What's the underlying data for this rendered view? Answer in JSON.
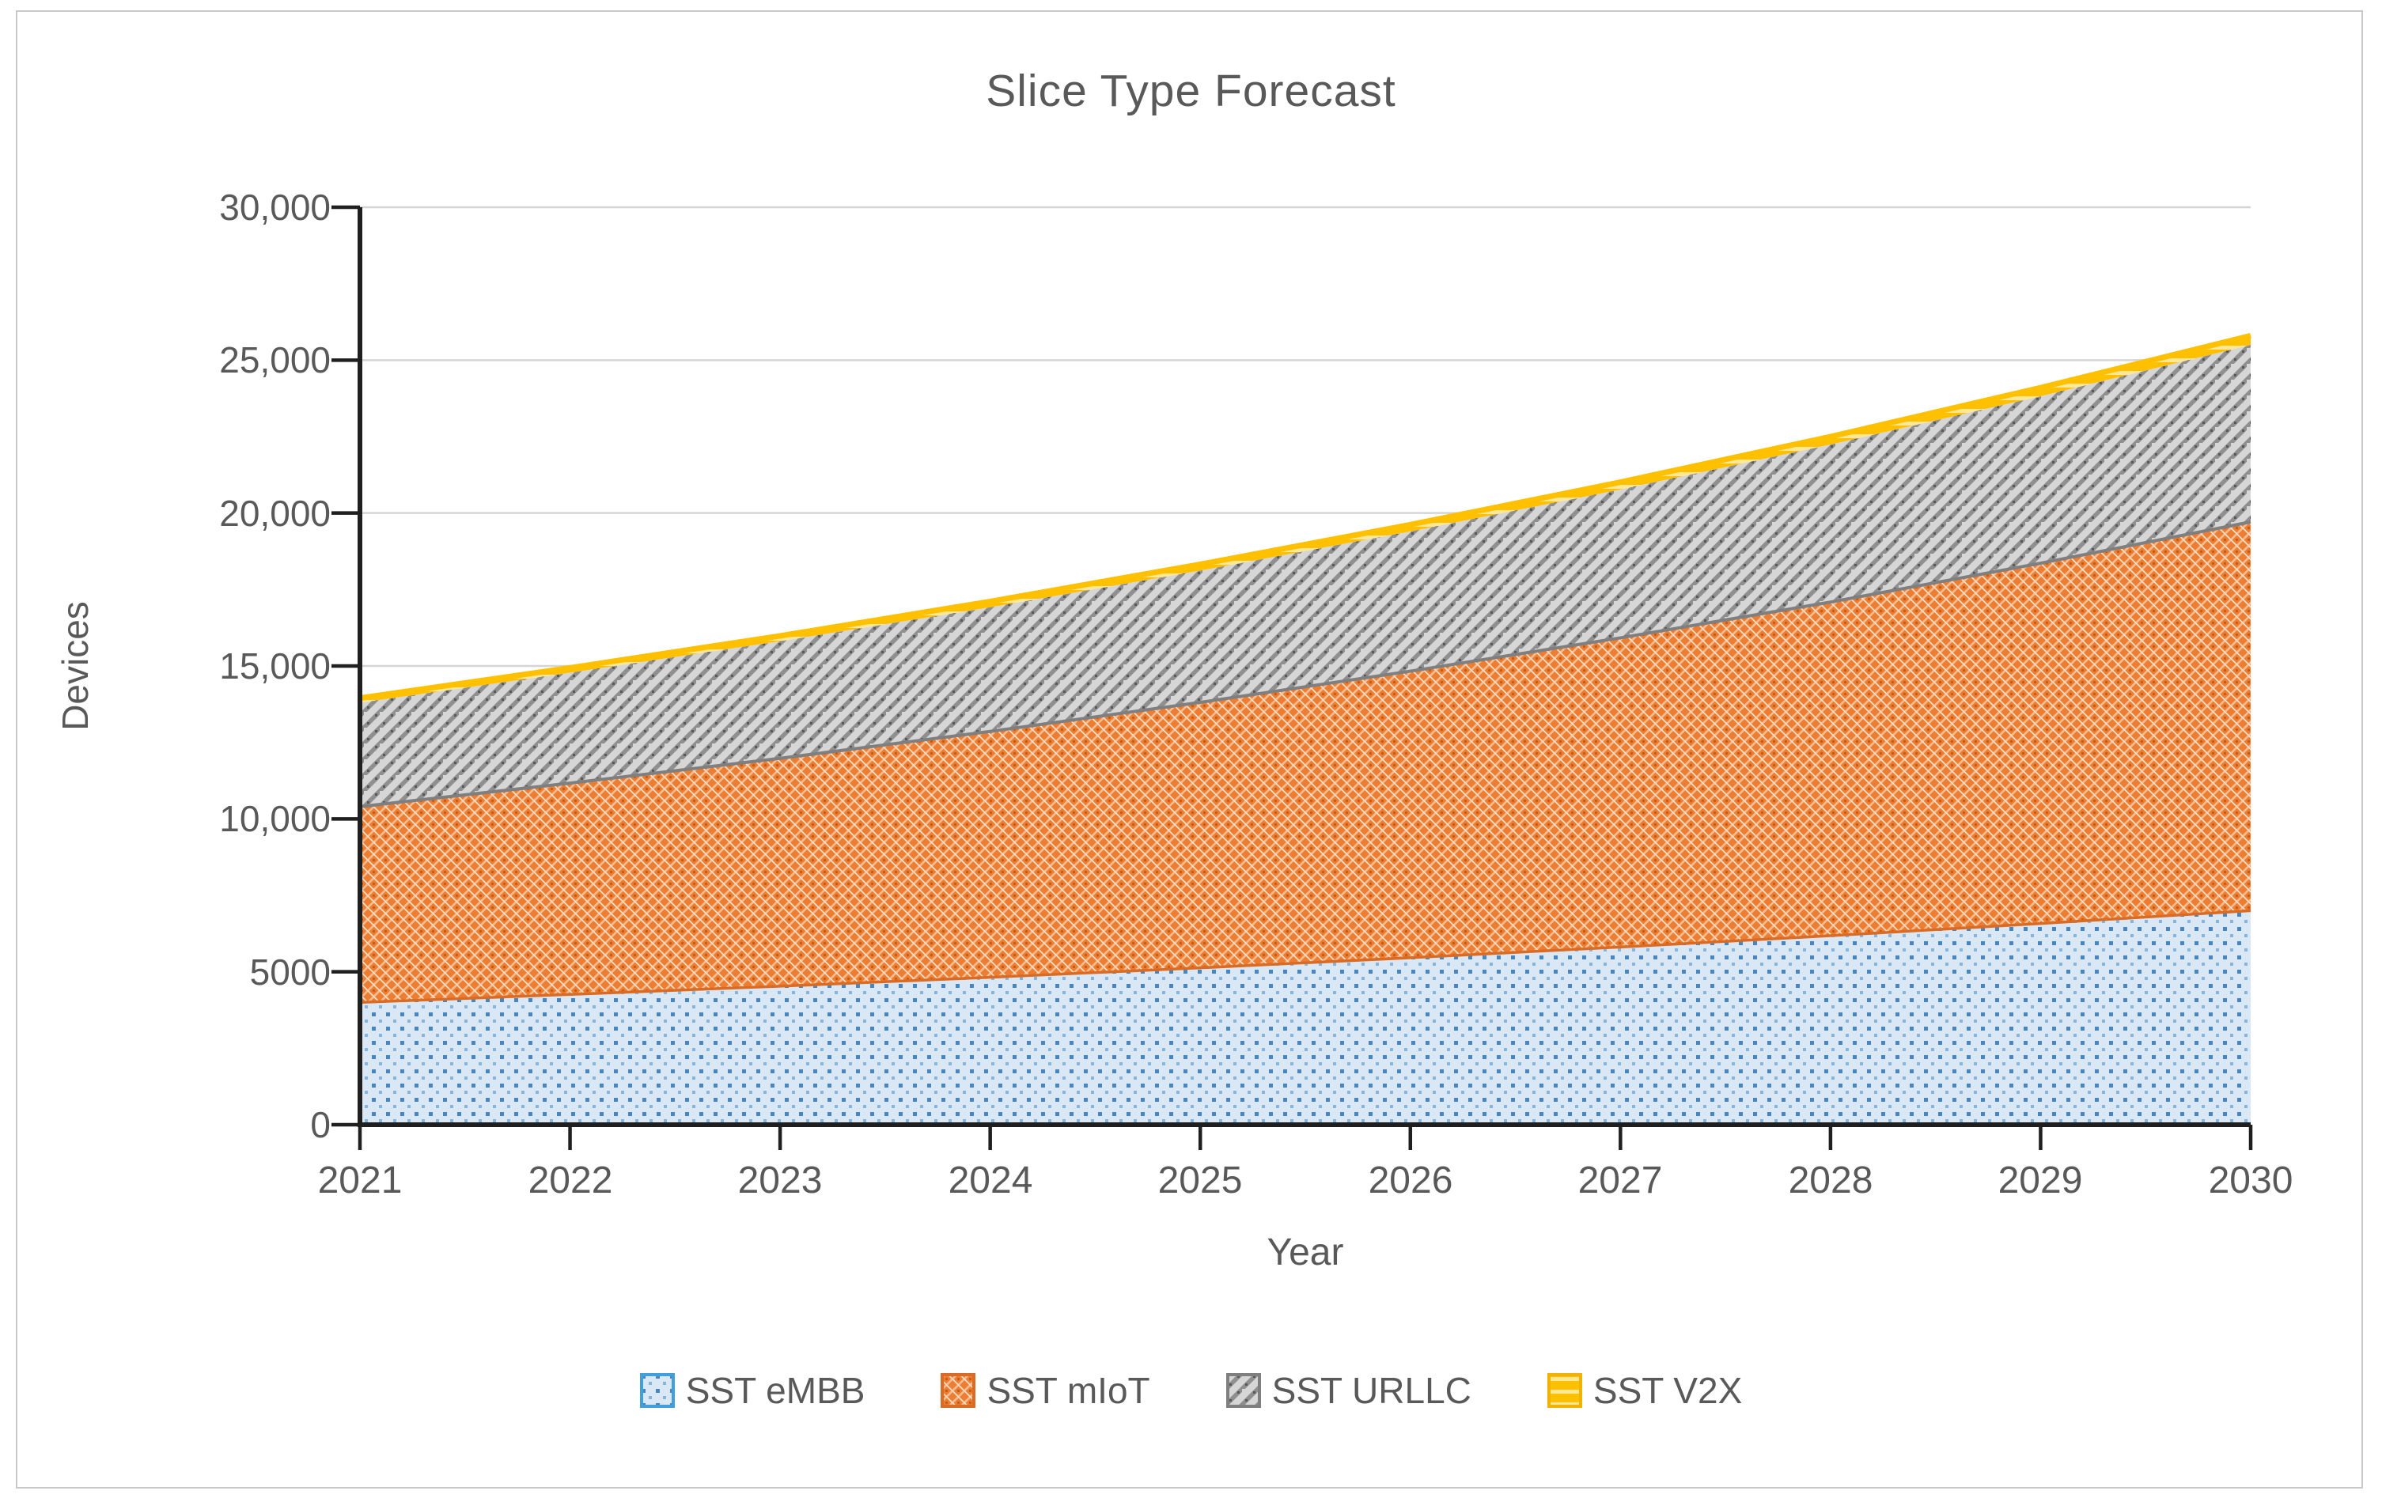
{
  "chart_data": {
    "type": "area",
    "stacked": true,
    "title": "Slice Type Forecast",
    "xlabel": "Year",
    "ylabel": "Devices",
    "categories": [
      "2021",
      "2022",
      "2023",
      "2024",
      "2025",
      "2026",
      "2027",
      "2028",
      "2029",
      "2030"
    ],
    "series": [
      {
        "name": "SST eMBB",
        "fill": "#DAE8F5",
        "accent": "#2E75B6",
        "border": "#41A0DC",
        "pattern": "dots",
        "values": [
          4000,
          4260,
          4530,
          4820,
          5130,
          5460,
          5810,
          6180,
          6580,
          7000
        ]
      },
      {
        "name": "SST mIoT",
        "fill": "#ED7D31",
        "accent": "#F9BD93",
        "border": "#D96B24",
        "pattern": "weave",
        "values": [
          6400,
          6910,
          7450,
          8040,
          8680,
          9370,
          10110,
          10910,
          11780,
          12710
        ]
      },
      {
        "name": "SST URLLC",
        "fill": "#D6D6D6",
        "accent": "#8F8F8F",
        "border": "#7F7F7F",
        "pattern": "diagonal",
        "values": [
          3400,
          3610,
          3830,
          4060,
          4310,
          4570,
          4850,
          5150,
          5460,
          5790
        ]
      },
      {
        "name": "SST V2X",
        "fill": "#FFC000",
        "accent": "#FFE793",
        "border": "#F1B200",
        "pattern": "hlines",
        "values": [
          150,
          160,
          175,
          190,
          205,
          220,
          240,
          260,
          280,
          300
        ]
      }
    ],
    "ylim": [
      0,
      30000
    ],
    "y_ticks": [
      0,
      5000,
      10000,
      15000,
      20000,
      25000,
      30000
    ],
    "y_tick_labels": [
      "0",
      "5000",
      "10,000",
      "15,000",
      "20,000",
      "25,000",
      "30,000"
    ],
    "grid": true,
    "legend_position": "bottom",
    "text_color": "#595959",
    "axis_color": "#1F1F1F",
    "grid_color": "#D5D5D5"
  }
}
